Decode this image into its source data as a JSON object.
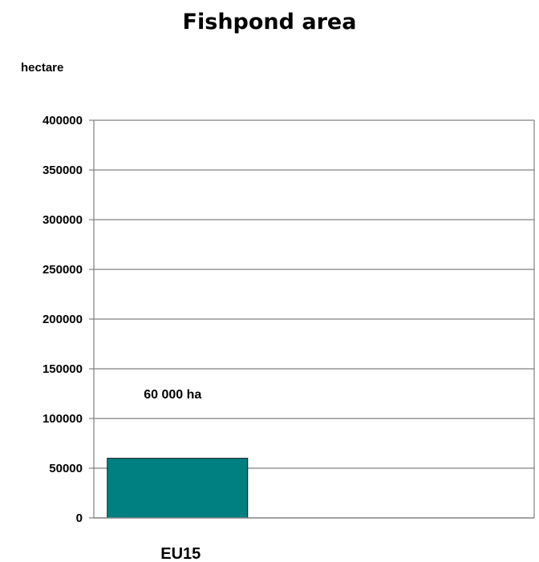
{
  "chart_data": {
    "type": "bar",
    "title": "Fishpond area",
    "ylabel": "hectare",
    "xlabel": "",
    "categories": [
      "EU15"
    ],
    "values": [
      60000
    ],
    "ylim": [
      0,
      400000
    ],
    "yticks": [
      0,
      50000,
      100000,
      150000,
      200000,
      250000,
      300000,
      350000,
      400000
    ],
    "annotations": [
      {
        "text": "60 000 ha",
        "category": "EU15",
        "y": 125000
      }
    ],
    "grid": true,
    "legend": "none",
    "colors": {
      "bar": "#008080",
      "bar_border": "#1a1a1a",
      "grid": "#808080",
      "axis": "#808080"
    }
  }
}
